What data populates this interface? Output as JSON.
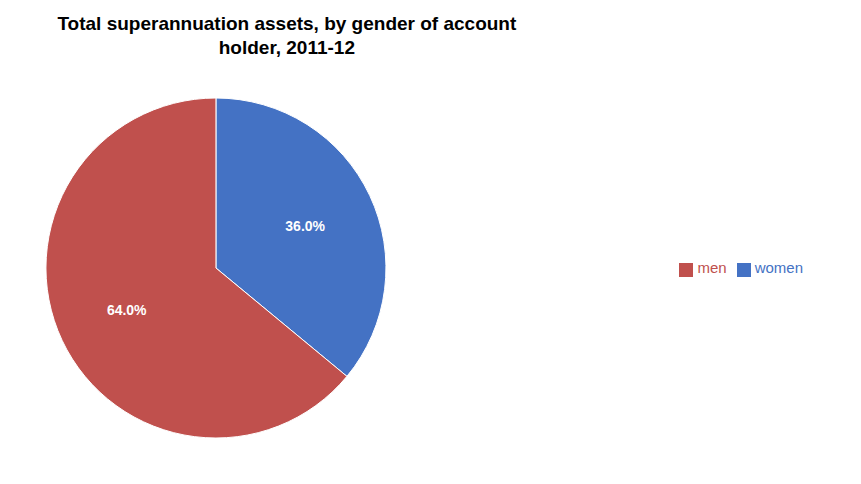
{
  "chart_data": {
    "type": "pie",
    "title": "Total superannuation assets, by gender of account\nholder, 2011-12",
    "categories": [
      "women",
      "men"
    ],
    "values": [
      36.0,
      64.0
    ],
    "value_labels": [
      "36.0%",
      "64.0%"
    ],
    "colors": [
      "#4472C4",
      "#C0504D"
    ],
    "data_labels": true,
    "legend": "right"
  }
}
